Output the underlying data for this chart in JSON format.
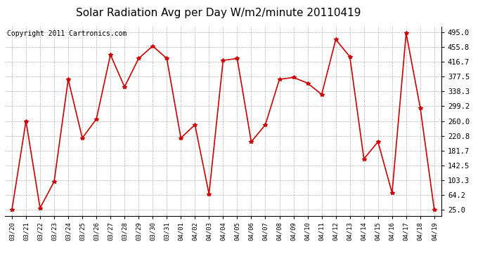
{
  "title": "Solar Radiation Avg per Day W/m2/minute 20110419",
  "copyright": "Copyright 2011 Cartronics.com",
  "dates": [
    "03/20",
    "03/21",
    "03/22",
    "03/23",
    "03/24",
    "03/25",
    "03/26",
    "03/27",
    "03/28",
    "03/29",
    "03/30",
    "03/31",
    "04/01",
    "04/02",
    "04/03",
    "04/04",
    "04/05",
    "04/06",
    "04/07",
    "04/08",
    "04/09",
    "04/10",
    "04/11",
    "04/12",
    "04/13",
    "04/14",
    "04/15",
    "04/16",
    "04/17",
    "04/18",
    "04/19"
  ],
  "values": [
    25,
    260,
    30,
    100,
    370,
    215,
    265,
    435,
    350,
    425,
    458,
    425,
    215,
    250,
    67,
    420,
    425,
    205,
    250,
    370,
    375,
    360,
    330,
    475,
    430,
    160,
    205,
    70,
    492,
    295,
    25
  ],
  "line_color": "#cc0000",
  "marker": "*",
  "marker_color": "#cc0000",
  "grid_color": "#aaaaaa",
  "bg_color": "#ffffff",
  "yticks": [
    25.0,
    64.2,
    103.3,
    142.5,
    181.7,
    220.8,
    260.0,
    299.2,
    338.3,
    377.5,
    416.7,
    455.8,
    495.0
  ],
  "ylim": [
    10,
    510
  ],
  "title_fontsize": 11,
  "copyright_fontsize": 7,
  "xtick_fontsize": 6.5,
  "ytick_fontsize": 7.5
}
